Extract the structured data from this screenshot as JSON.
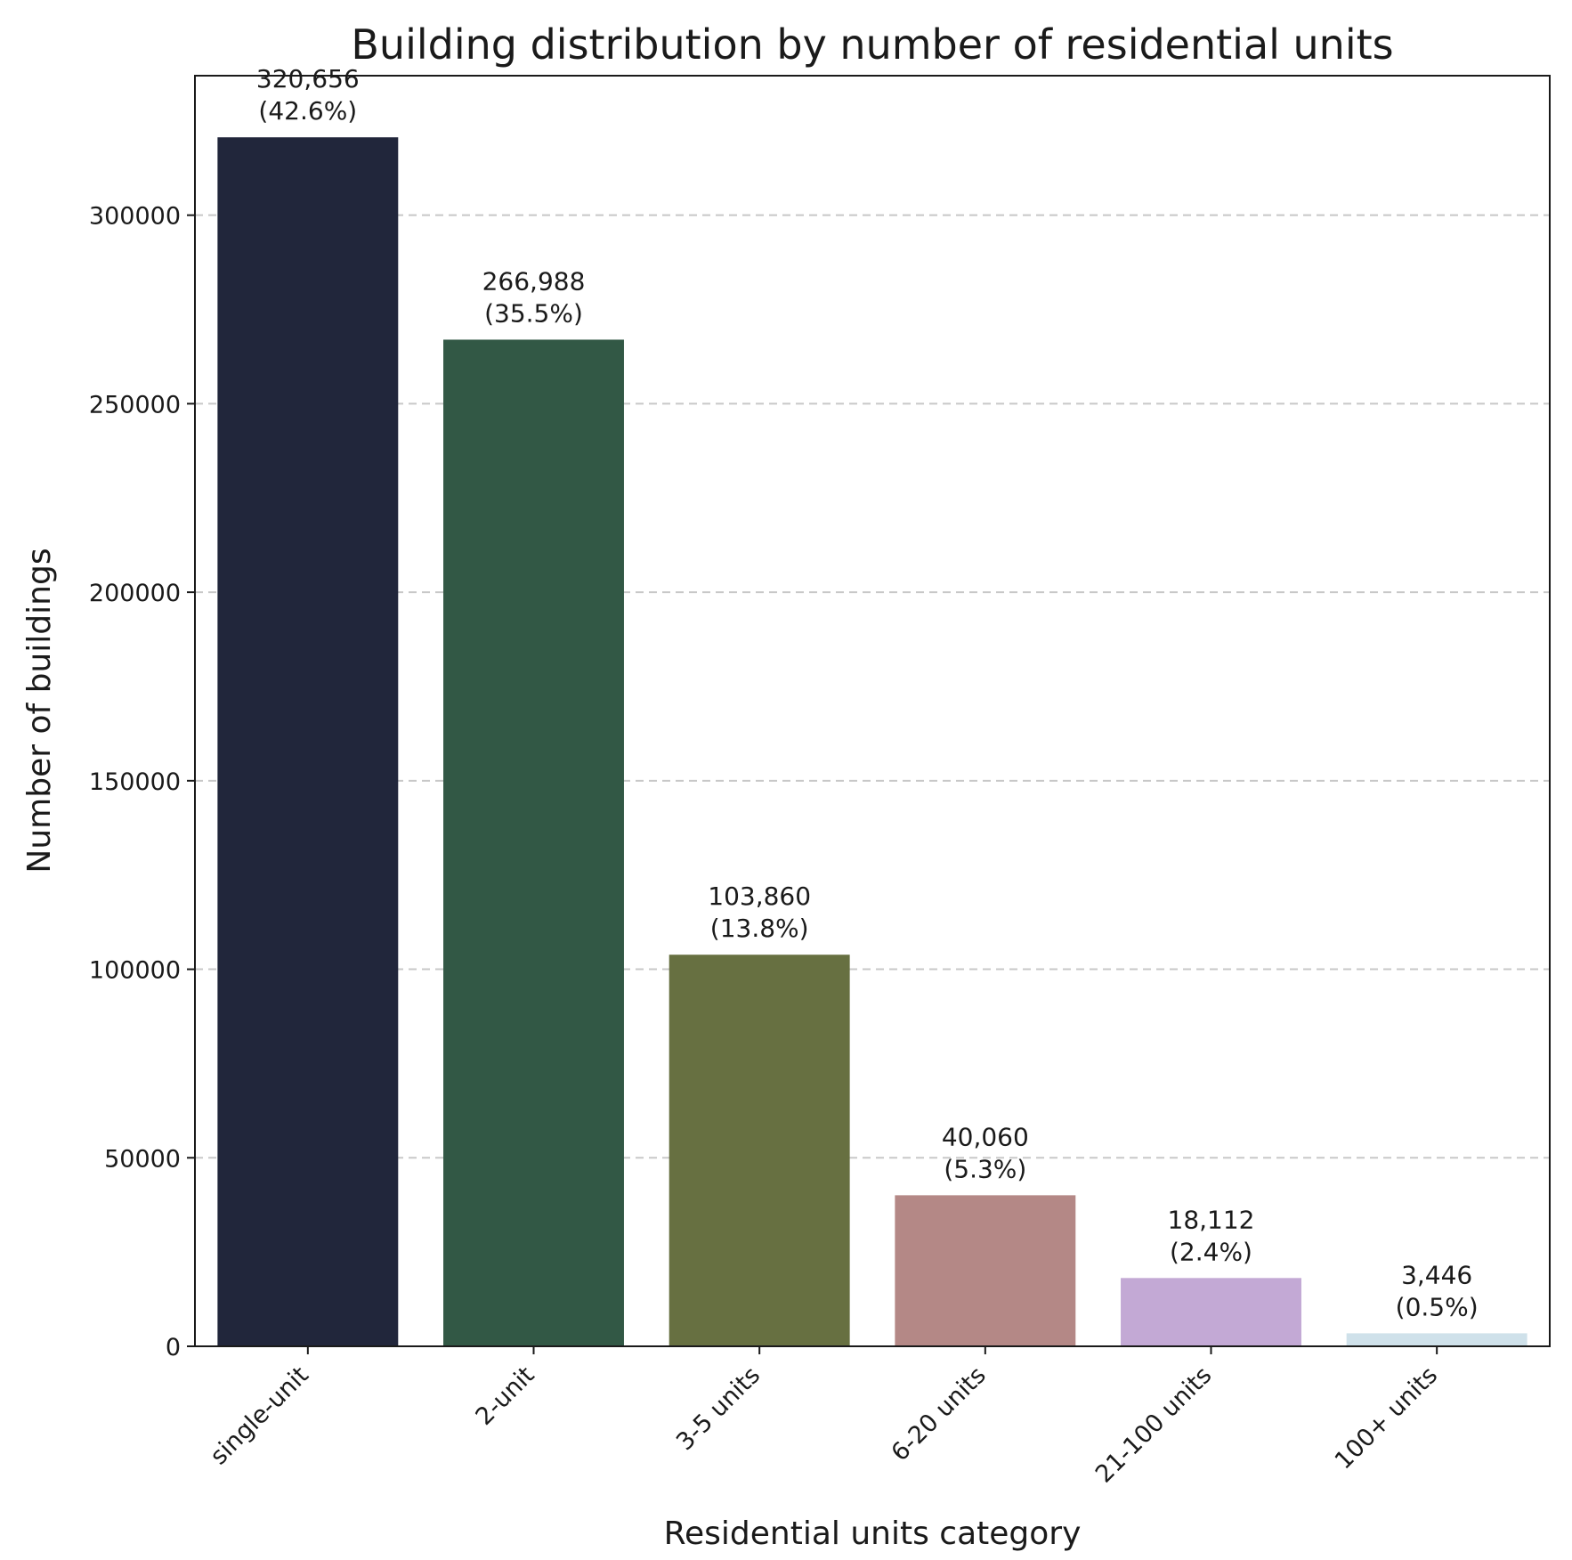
{
  "chart_data": {
    "type": "bar",
    "title": "Building distribution by number of residential units",
    "xlabel": "Residential units category",
    "ylabel": "Number of buildings",
    "categories": [
      "single-unit",
      "2-unit",
      "3-5 units",
      "6-20 units",
      "21-100 units",
      "100+ units"
    ],
    "values": [
      320656,
      266988,
      103860,
      40060,
      18112,
      3446
    ],
    "value_labels": [
      "320,656",
      "266,988",
      "103,860",
      "40,060",
      "18,112",
      "3,446"
    ],
    "percent_labels": [
      "(42.6%)",
      "(35.5%)",
      "(13.8%)",
      "(5.3%)",
      "(2.4%)",
      "(0.5%)"
    ],
    "colors": [
      "#21263b",
      "#325845",
      "#677041",
      "#b48886",
      "#c3a9d5",
      "#cfe1ea"
    ],
    "yticks": [
      0,
      50000,
      100000,
      150000,
      200000,
      250000,
      300000
    ],
    "ytick_labels": [
      "0",
      "50000",
      "100000",
      "150000",
      "200000",
      "250000",
      "300000"
    ],
    "ylim": [
      0,
      337000
    ],
    "grid": "horizontal dashed",
    "legend": "none"
  }
}
